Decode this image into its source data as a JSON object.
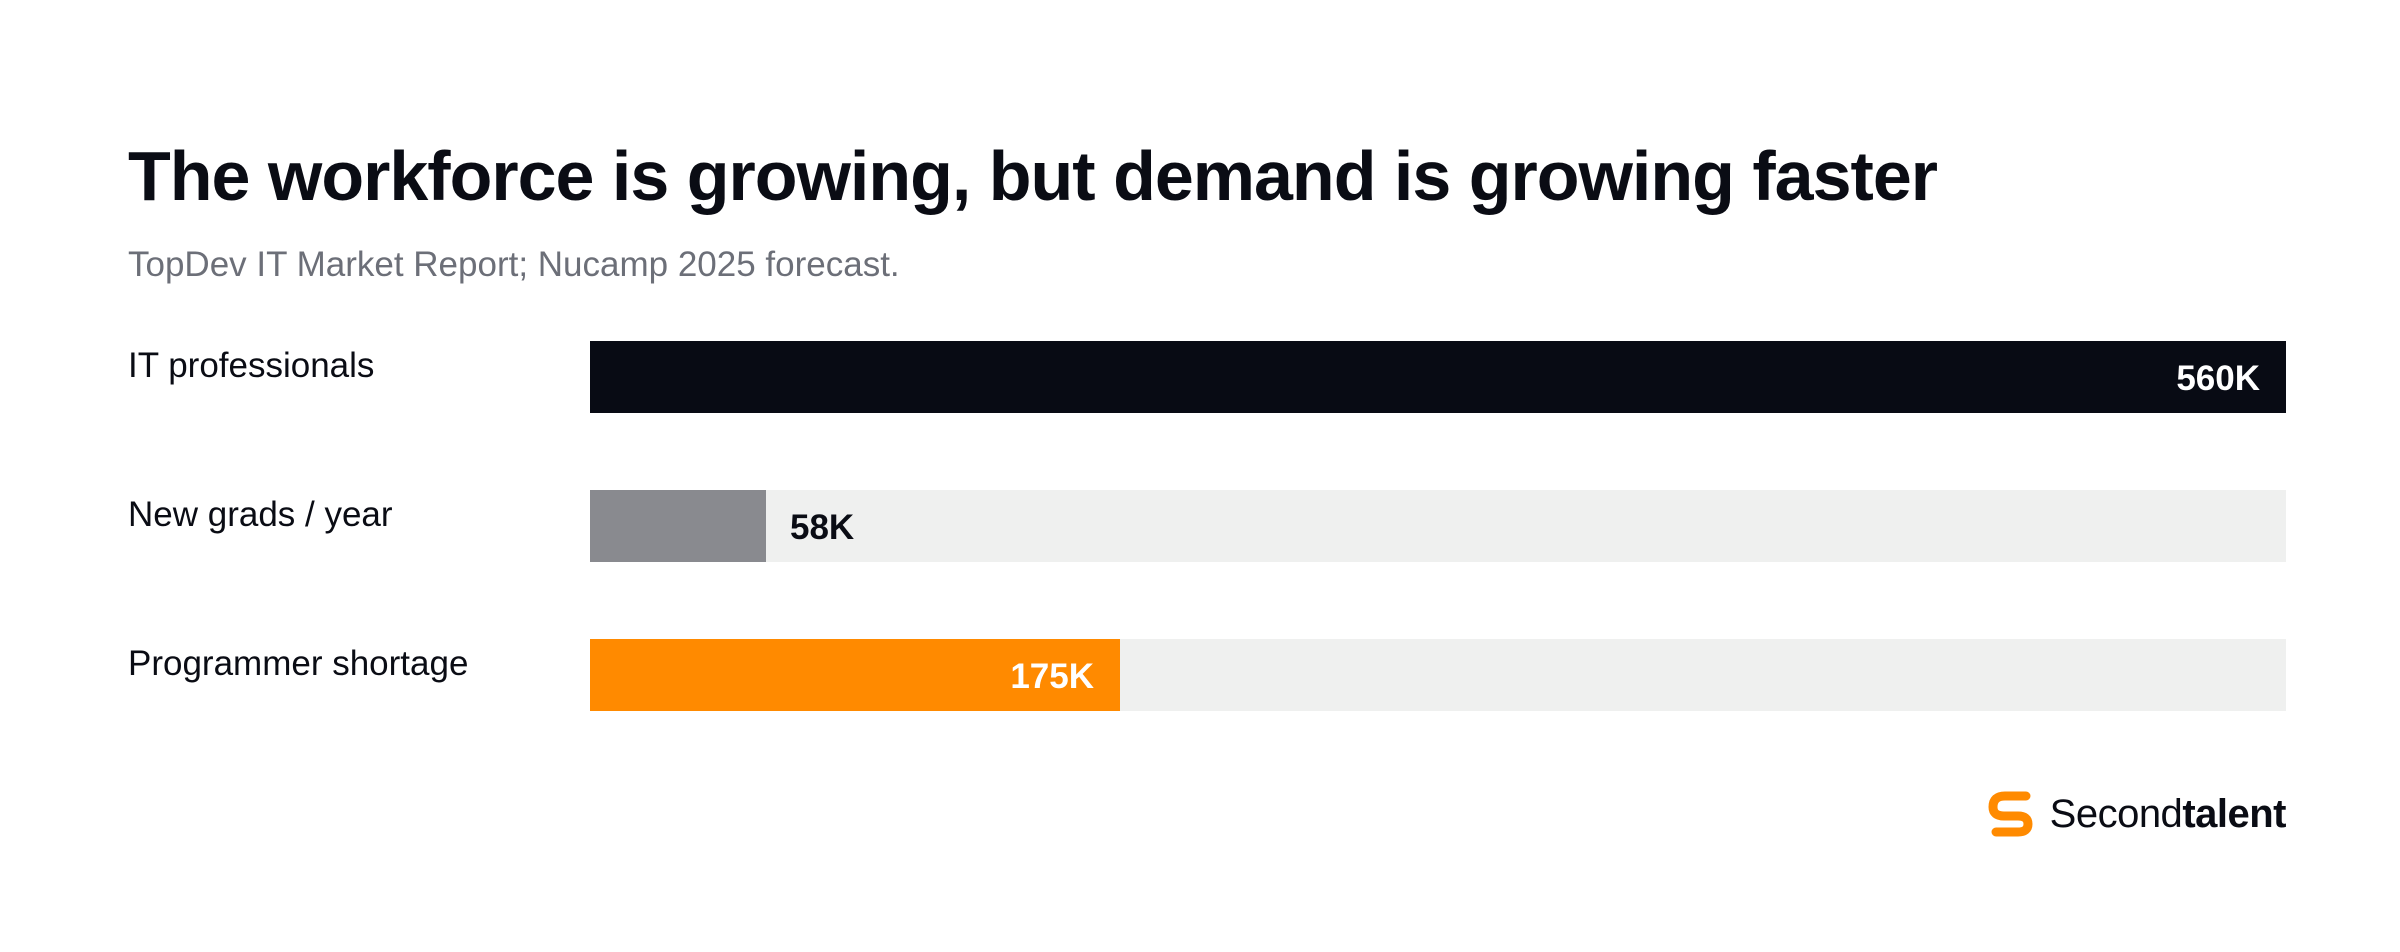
{
  "chart_data": {
    "type": "bar",
    "orientation": "horizontal",
    "title": "The workforce is growing, but demand is growing faster",
    "subtitle": "TopDev IT Market Report; Nucamp 2025 forecast.",
    "categories": [
      "IT professionals",
      "New grads / year",
      "Programmer shortage"
    ],
    "values": [
      560,
      58,
      175
    ],
    "value_labels": [
      "560K",
      "58K",
      "175K"
    ],
    "colors": [
      "#080b14",
      "#898a8f",
      "#ff8a00"
    ],
    "track_color": "#eff0ef",
    "xlim": [
      0,
      560
    ],
    "grid": false
  },
  "brand": {
    "logo_icon": "secondtalent-s-icon",
    "regular": "Second",
    "bold": "talent",
    "color": "#ff8a00"
  }
}
